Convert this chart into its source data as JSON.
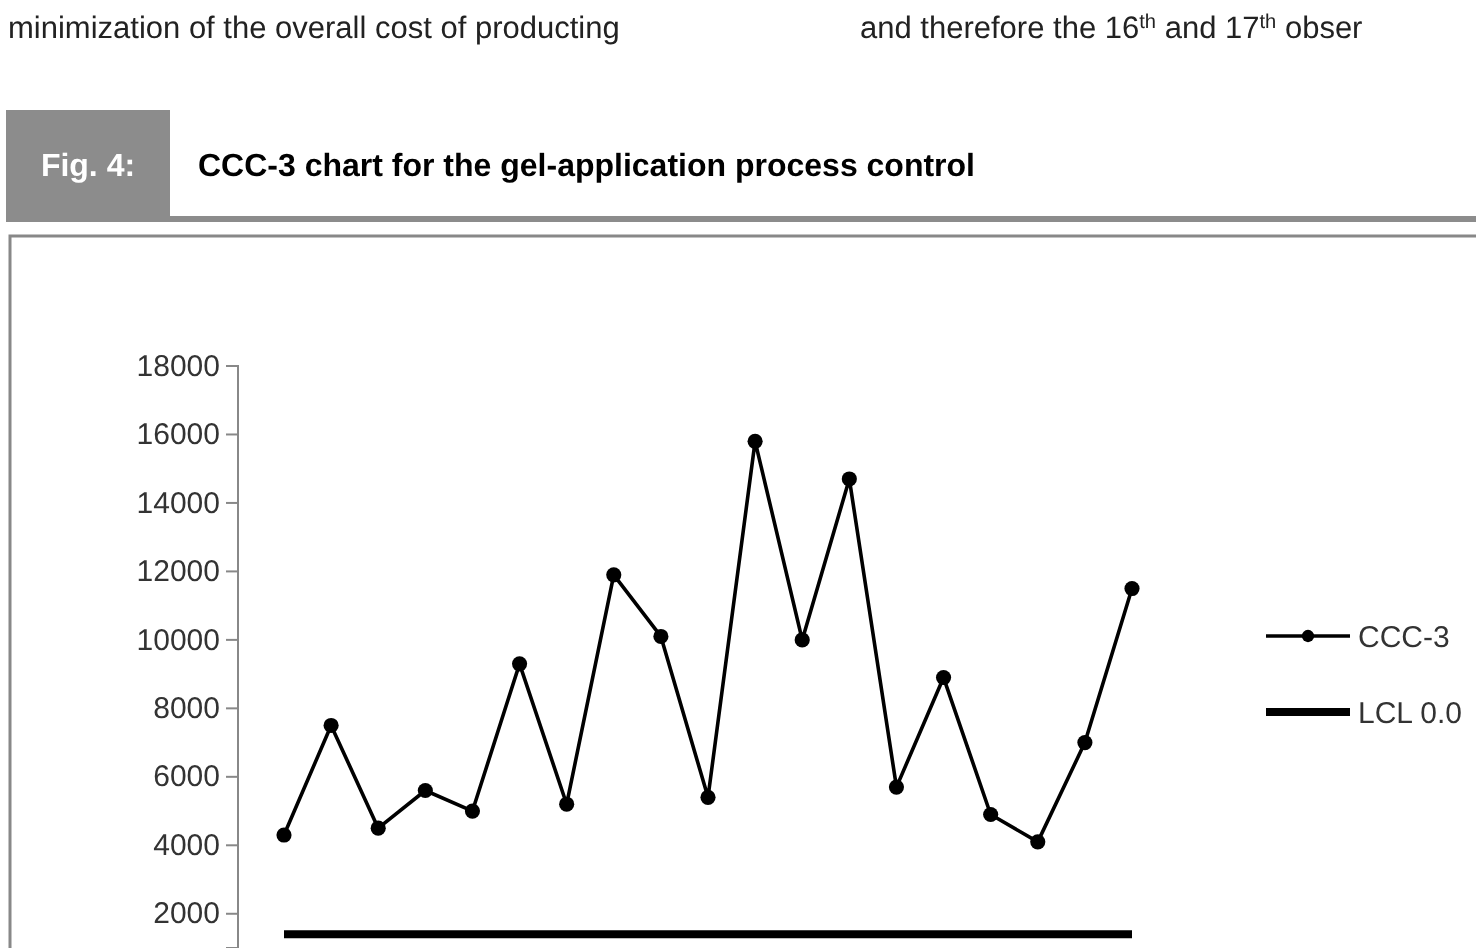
{
  "chart_data": {
    "type": "line",
    "title": "CCC-3 chart for the gel-application process control",
    "annotations": [
      "Fig. 4:",
      "minimization of the overall cost of producting",
      "and therefore the 16$^{th}$ and 17$^{th}$ obser"
    ],
    "categories": [
      null,
      null,
      null,
      null,
      null,
      null,
      null,
      null,
      null,
      null,
      null,
      null,
      null,
      null,
      null,
      null,
      null,
      null,
      null
    ],
    "series": [
      {
        "name": "CCC-3",
        "color": "#000000",
        "marker": "circle",
        "values": [
          4300,
          7500,
          4500,
          5600,
          5000,
          9300,
          5200,
          11900,
          10100,
          5400,
          15800,
          10000,
          14700,
          5700,
          8900,
          4900,
          4100,
          7000,
          11500
        ]
      },
      {
        "name": "LCL 0.0",
        "color": "#000000",
        "marker": "none",
        "values": [
          1400,
          1400,
          1400,
          1400,
          1400,
          1400,
          1400,
          1400,
          1400,
          1400,
          1400,
          1400,
          1400,
          1400,
          1400,
          1400,
          1400,
          1400,
          1400
        ]
      }
    ],
    "ylim": [
      1000,
      18000
    ],
    "yticks": [
      2000,
      4000,
      6000,
      8000,
      10000,
      12000,
      14000,
      16000,
      18000
    ],
    "tick_labels": "y",
    "grid": false,
    "legend": "right"
  }
}
